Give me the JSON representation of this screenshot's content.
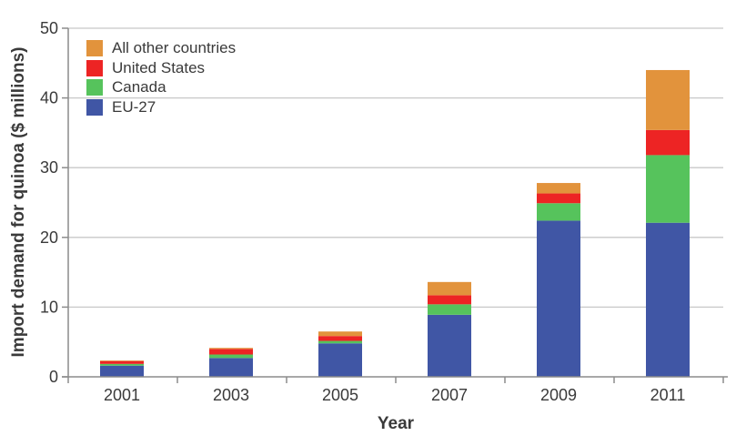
{
  "figure": {
    "y_axis_label": "Import demand for quinoa ($ millions)",
    "x_axis_label": "Year"
  },
  "legend": {
    "items": [
      {
        "label": "All other countries",
        "color": "#e2933c"
      },
      {
        "label": "United States",
        "color": "#ed2424"
      },
      {
        "label": "Canada",
        "color": "#56c35c"
      },
      {
        "label": "EU-27",
        "color": "#4056a5"
      }
    ]
  },
  "chart_data": {
    "type": "bar",
    "stacked": true,
    "title": "",
    "xlabel": "Year",
    "ylabel": "Import demand for quinoa ($ millions)",
    "categories": [
      "2001",
      "2003",
      "2005",
      "2007",
      "2009",
      "2011"
    ],
    "series": [
      {
        "name": "EU-27",
        "color": "#4056a5",
        "values": [
          1.6,
          2.7,
          4.8,
          8.9,
          22.4,
          22.1
        ]
      },
      {
        "name": "Canada",
        "color": "#56c35c",
        "values": [
          0.25,
          0.5,
          0.35,
          1.5,
          2.5,
          9.7
        ]
      },
      {
        "name": "United States",
        "color": "#ed2424",
        "values": [
          0.4,
          0.8,
          0.7,
          1.3,
          1.4,
          3.6
        ]
      },
      {
        "name": "All other countries",
        "color": "#e2933c",
        "values": [
          0.1,
          0.15,
          0.65,
          1.9,
          1.5,
          8.6
        ]
      }
    ],
    "totals": [
      2.35,
      4.15,
      6.5,
      13.6,
      27.8,
      44.0
    ],
    "ylim": [
      0,
      50
    ],
    "yticks": [
      0,
      10,
      20,
      30,
      40,
      50
    ],
    "grid": true,
    "legend_position": "top-left",
    "legend_order": [
      "All other countries",
      "United States",
      "Canada",
      "EU-27"
    ]
  },
  "style": {
    "grid_color": "#c8c8c8",
    "axis_color": "#8c8c8c",
    "text_color": "#3a3a3a"
  }
}
